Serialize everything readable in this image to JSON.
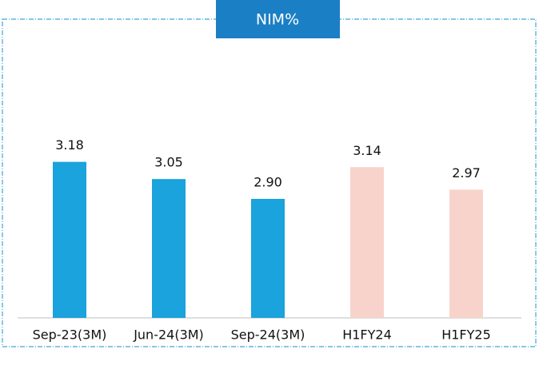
{
  "chart_data": {
    "type": "bar",
    "title": "NIM%",
    "categories": [
      "Sep-23(3M)",
      "Jun-24(3M)",
      "Sep-24(3M)",
      "H1FY24",
      "H1FY25"
    ],
    "values": [
      3.18,
      3.05,
      2.9,
      3.14,
      2.97
    ],
    "value_labels": [
      "3.18",
      "3.05",
      "2.90",
      "3.14",
      "2.97"
    ],
    "colors": [
      "#1aa3dc",
      "#1aa3dc",
      "#1aa3dc",
      "#f8d3cc",
      "#f8d3cc"
    ],
    "ylim": [
      2.0,
      3.8
    ]
  }
}
